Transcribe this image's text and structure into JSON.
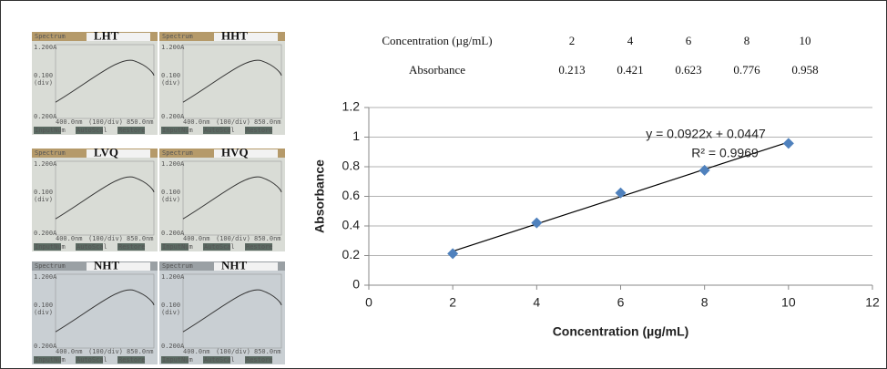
{
  "panels": [
    {
      "label": "LHT"
    },
    {
      "label": "HHT"
    },
    {
      "label": "LVQ"
    },
    {
      "label": "HVQ"
    },
    {
      "label": "NHT"
    },
    {
      "label": "NHT"
    }
  ],
  "screen": {
    "header": "Spectrum",
    "y_top": "1.200A",
    "y_mid": "0.100",
    "y_div": "(div)",
    "y_bottom": "0.200A",
    "x_left": "400.0nm",
    "x_mid": "(100/div)",
    "x_right": "850.0nm",
    "buttons": [
      "InputNum",
      "AutoScal",
      "Restore"
    ]
  },
  "table": {
    "rows": [
      [
        "Concentration (µg/mL)",
        "2",
        "4",
        "6",
        "8",
        "10"
      ],
      [
        "Absorbance",
        "0.213",
        "0.421",
        "0.623",
        "0.776",
        "0.958"
      ]
    ]
  },
  "chart_data": {
    "type": "scatter",
    "x_label": "Concentration (µg/mL)",
    "y_label": "Absorbance",
    "x": [
      2,
      4,
      6,
      8,
      10
    ],
    "values": [
      0.213,
      0.421,
      0.623,
      0.776,
      0.958
    ],
    "color": "#4f81bd",
    "xlim": [
      0,
      12
    ],
    "xticks": [
      0,
      2,
      4,
      6,
      8,
      10,
      12
    ],
    "ylim": [
      0,
      1.2
    ],
    "yticks": [
      0,
      0.2,
      0.4,
      0.6,
      0.8,
      1,
      1.2
    ],
    "grid": true,
    "trendline": {
      "slope": 0.0922,
      "intercept": 0.0447,
      "equation": "y = 0.0922x + 0.0447",
      "r_squared": "R² = 0.9969"
    }
  }
}
